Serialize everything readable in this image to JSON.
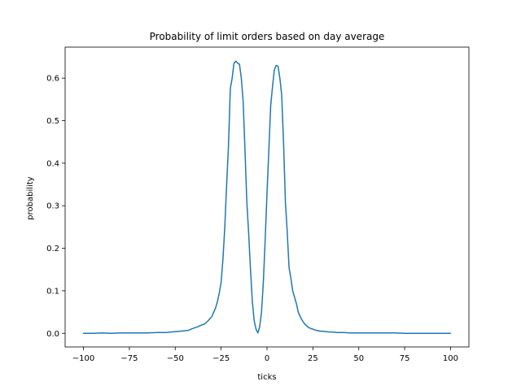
{
  "chart_data": {
    "type": "line",
    "title": "Probability of limit orders based on day average",
    "xlabel": "ticks",
    "ylabel": "probability",
    "xlim": [
      -110,
      110
    ],
    "ylim": [
      -0.032,
      0.673
    ],
    "xticks": [
      -100,
      -75,
      -50,
      -25,
      0,
      25,
      50,
      75,
      100
    ],
    "xtick_labels": [
      "−100",
      "−75",
      "−50",
      "−25",
      "0",
      "25",
      "50",
      "75",
      "100"
    ],
    "yticks": [
      0.0,
      0.1,
      0.2,
      0.3,
      0.4,
      0.5,
      0.6
    ],
    "ytick_labels": [
      "0.0",
      "0.1",
      "0.2",
      "0.3",
      "0.4",
      "0.5",
      "0.6"
    ],
    "grid": false,
    "line_color": "#1f77b4",
    "series": [
      {
        "x": [
          -100,
          -95,
          -90,
          -85,
          -80,
          -75,
          -70,
          -65,
          -60,
          -55,
          -50,
          -47,
          -45,
          -43,
          -40,
          -38,
          -36,
          -34,
          -32,
          -30,
          -29,
          -28,
          -27,
          -26,
          -25,
          -24,
          -23,
          -22,
          -21,
          -20,
          -19,
          -18,
          -17,
          -16,
          -15,
          -14,
          -13,
          -12,
          -11,
          -10,
          -9,
          -8,
          -7,
          -6,
          -5,
          -4,
          -3,
          -2,
          -1,
          0,
          1,
          2,
          3,
          4,
          5,
          6,
          7,
          8,
          9,
          10,
          11,
          12,
          13,
          14,
          15,
          16,
          17,
          18,
          19,
          20,
          21,
          22,
          23,
          24,
          25,
          26,
          27,
          28,
          29,
          30,
          32,
          34,
          36,
          38,
          40,
          42,
          45,
          48,
          50,
          55,
          60,
          65,
          70,
          75,
          80,
          85,
          90,
          95,
          100
        ],
        "y": [
          0.0,
          0.0,
          0.001,
          0.0,
          0.001,
          0.001,
          0.001,
          0.001,
          0.002,
          0.002,
          0.004,
          0.005,
          0.006,
          0.007,
          0.012,
          0.015,
          0.019,
          0.022,
          0.03,
          0.04,
          0.05,
          0.06,
          0.075,
          0.095,
          0.12,
          0.175,
          0.25,
          0.35,
          0.44,
          0.575,
          0.6,
          0.635,
          0.64,
          0.635,
          0.633,
          0.6,
          0.545,
          0.43,
          0.31,
          0.235,
          0.15,
          0.075,
          0.03,
          0.01,
          0.001,
          0.015,
          0.05,
          0.12,
          0.22,
          0.33,
          0.43,
          0.535,
          0.58,
          0.62,
          0.63,
          0.628,
          0.6,
          0.56,
          0.45,
          0.31,
          0.24,
          0.155,
          0.13,
          0.1,
          0.085,
          0.07,
          0.05,
          0.04,
          0.032,
          0.025,
          0.02,
          0.016,
          0.013,
          0.011,
          0.01,
          0.008,
          0.007,
          0.006,
          0.005,
          0.005,
          0.004,
          0.003,
          0.003,
          0.002,
          0.002,
          0.002,
          0.001,
          0.001,
          0.001,
          0.001,
          0.001,
          0.001,
          0.001,
          0.0,
          0.0,
          0.0,
          0.0,
          0.0,
          0.0
        ]
      }
    ]
  }
}
